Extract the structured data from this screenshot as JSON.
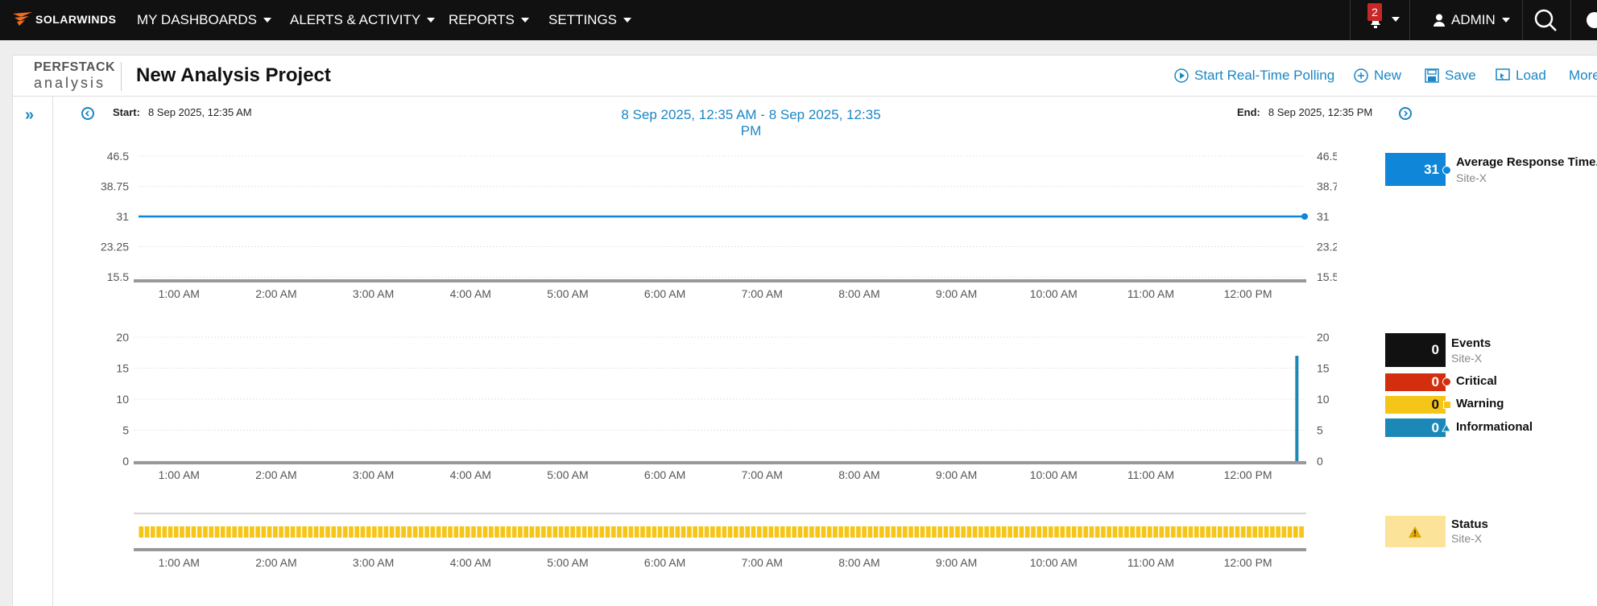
{
  "nav": {
    "logo_text": "SOLARWINDS",
    "items": [
      "MY DASHBOARDS",
      "ALERTS & ACTIVITY",
      "REPORTS",
      "SETTINGS"
    ],
    "notifications_count": "2",
    "user": "ADMIN"
  },
  "header": {
    "brand_top": "PERFSTACK",
    "brand_bottom": "analysis",
    "title": "New Analysis Project",
    "actions": [
      "Start Real-Time Polling",
      "New",
      "Save",
      "Load",
      "More"
    ]
  },
  "timebar": {
    "start_label": "Start:",
    "start_value": "8 Sep 2025, 12:35 AM",
    "range": "8 Sep 2025, 12:35 AM - 8 Sep 2025, 12:35 PM",
    "end_label": "End:",
    "end_value": "8 Sep 2025, 12:35 PM"
  },
  "x_ticks": [
    "1:00 AM",
    "2:00 AM",
    "3:00 AM",
    "4:00 AM",
    "5:00 AM",
    "6:00 AM",
    "7:00 AM",
    "8:00 AM",
    "9:00 AM",
    "10:00 AM",
    "11:00 AM",
    "12:00 PM"
  ],
  "chart_data": [
    {
      "type": "line",
      "y_ticks": [
        "46.5",
        "38.75",
        "31",
        "23.25",
        "15.5"
      ],
      "ylim": [
        15.5,
        46.5
      ],
      "series": [
        {
          "name": "Average Response Time...",
          "x_hours": [
            0.0,
            12.0
          ],
          "values": [
            31,
            31
          ]
        }
      ],
      "color": "#0f86d8"
    },
    {
      "type": "bar",
      "y_ticks": [
        "20",
        "15",
        "10",
        "5",
        "0"
      ],
      "ylim": [
        0,
        20
      ],
      "bars": [
        {
          "x_hours": 11.92,
          "value": 17
        }
      ],
      "color": "#1c88b8"
    },
    {
      "type": "area",
      "status": "Warning",
      "color": "#f5c518"
    }
  ],
  "legend": {
    "response": {
      "value": "31",
      "name": "Average Response Time...",
      "sub": "Site-X",
      "color": "#0f86d8"
    },
    "events": {
      "value": "0",
      "name": "Events",
      "sub": "Site-X",
      "color": "#111111"
    },
    "critical": {
      "value": "0",
      "name": "Critical",
      "color": "#d32f0f"
    },
    "warning": {
      "value": "0",
      "name": "Warning",
      "color": "#f5c518"
    },
    "informational": {
      "value": "0",
      "name": "Informational",
      "color": "#1c88b8"
    },
    "status": {
      "name": "Status",
      "sub": "Site-X",
      "color": "#fbe39a"
    }
  }
}
